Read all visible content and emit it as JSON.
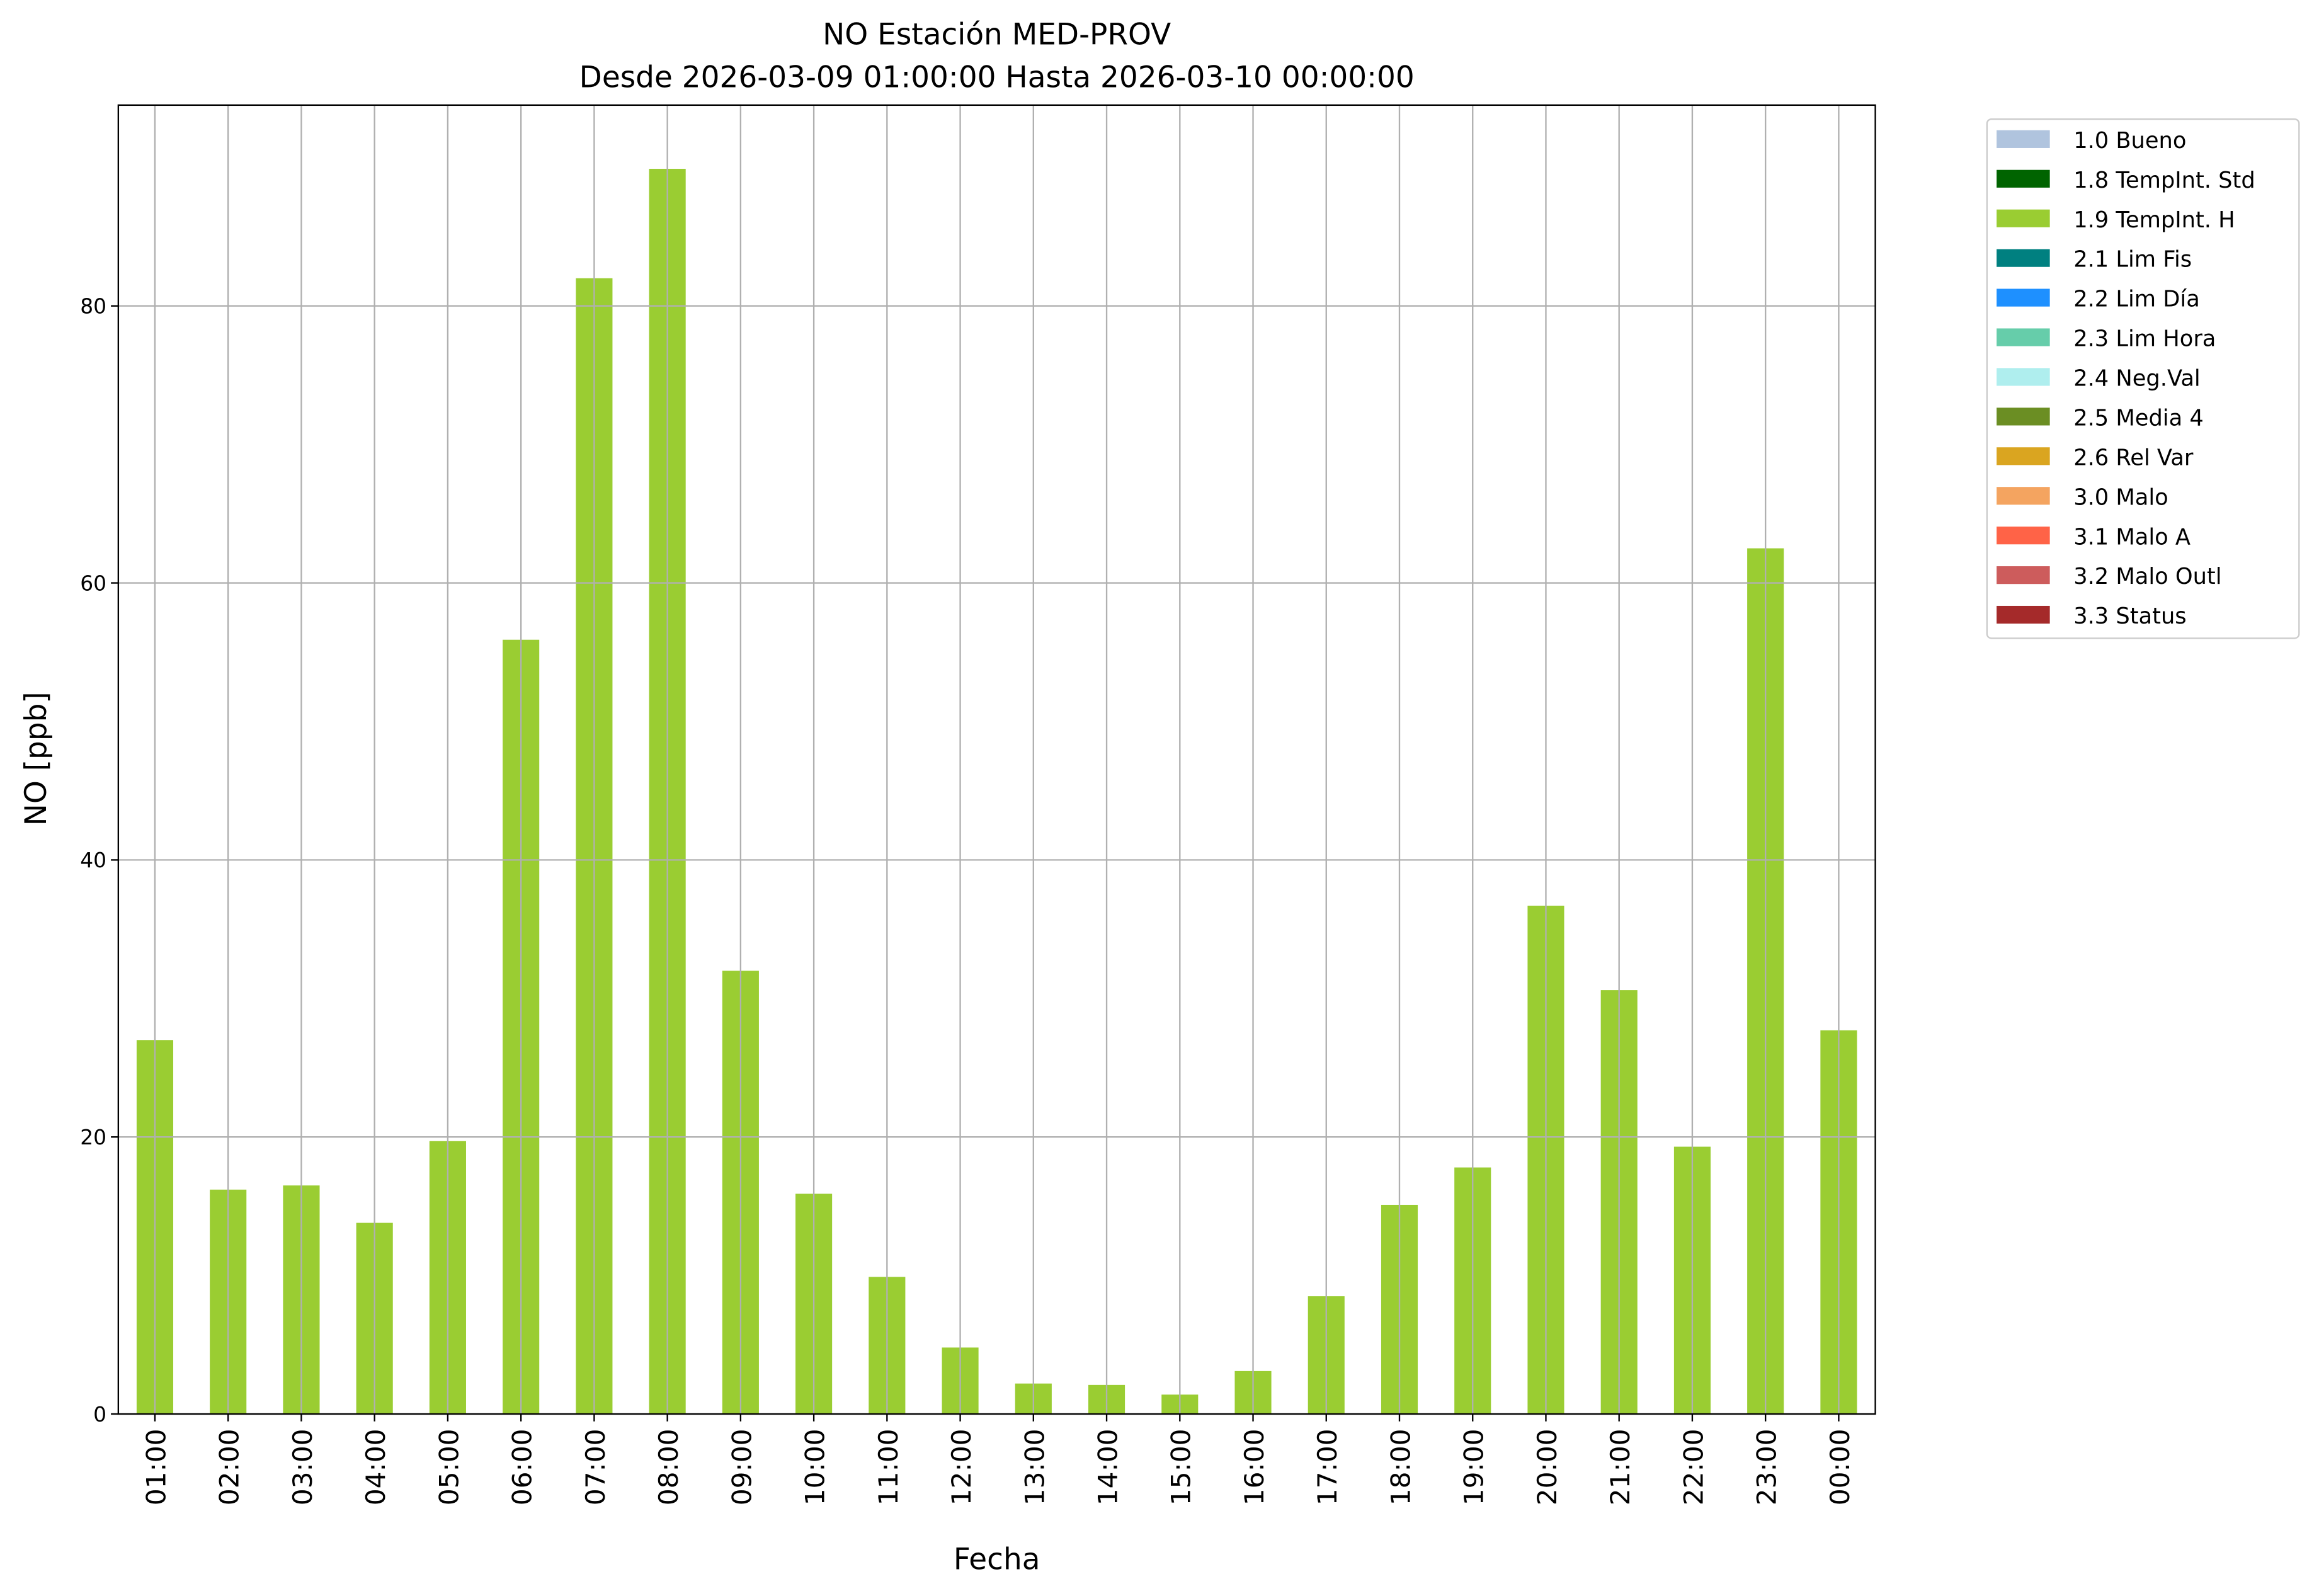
{
  "chart_data": {
    "type": "bar",
    "title": "NO Estación MED-PROV",
    "subtitle": "Desde 2026-03-09 01:00:00 Hasta 2026-03-10 00:00:00",
    "xlabel": "Fecha",
    "ylabel": "NO [ppb]",
    "ylim": [
      0,
      94.5
    ],
    "yticks": [
      0,
      20,
      40,
      60,
      80
    ],
    "grid": true,
    "legend_position": "outside-top-right",
    "categories": [
      "01:00",
      "02:00",
      "03:00",
      "04:00",
      "05:00",
      "06:00",
      "07:00",
      "08:00",
      "09:00",
      "10:00",
      "11:00",
      "12:00",
      "13:00",
      "14:00",
      "15:00",
      "16:00",
      "17:00",
      "18:00",
      "19:00",
      "20:00",
      "21:00",
      "22:00",
      "23:00",
      "00:00"
    ],
    "series": [
      {
        "name": "1.9 TempInt. H",
        "color": "#9acd32",
        "values": [
          27.0,
          16.2,
          16.5,
          13.8,
          19.7,
          55.9,
          82.0,
          89.9,
          32.0,
          15.9,
          9.9,
          4.8,
          2.2,
          2.1,
          1.4,
          3.1,
          8.5,
          15.1,
          17.8,
          36.7,
          30.6,
          19.3,
          62.5,
          27.7
        ]
      }
    ],
    "legend": [
      {
        "label": "1.0 Bueno",
        "color": "#b0c4de"
      },
      {
        "label": "1.8 TempInt. Std",
        "color": "#006400"
      },
      {
        "label": "1.9 TempInt. H",
        "color": "#9acd32"
      },
      {
        "label": "2.1 Lim Fis",
        "color": "#008080"
      },
      {
        "label": "2.2 Lim Día",
        "color": "#1e90ff"
      },
      {
        "label": "2.3 Lim Hora",
        "color": "#66cdaa"
      },
      {
        "label": "2.4 Neg.Val",
        "color": "#afeeee"
      },
      {
        "label": "2.5 Media 4",
        "color": "#6b8e23"
      },
      {
        "label": "2.6 Rel Var",
        "color": "#daa520"
      },
      {
        "label": "3.0 Malo",
        "color": "#f4a460"
      },
      {
        "label": "3.1 Malo A",
        "color": "#ff6347"
      },
      {
        "label": "3.2 Malo Outl",
        "color": "#cd5c5c"
      },
      {
        "label": "3.3 Status",
        "color": "#a52a2a"
      }
    ]
  }
}
